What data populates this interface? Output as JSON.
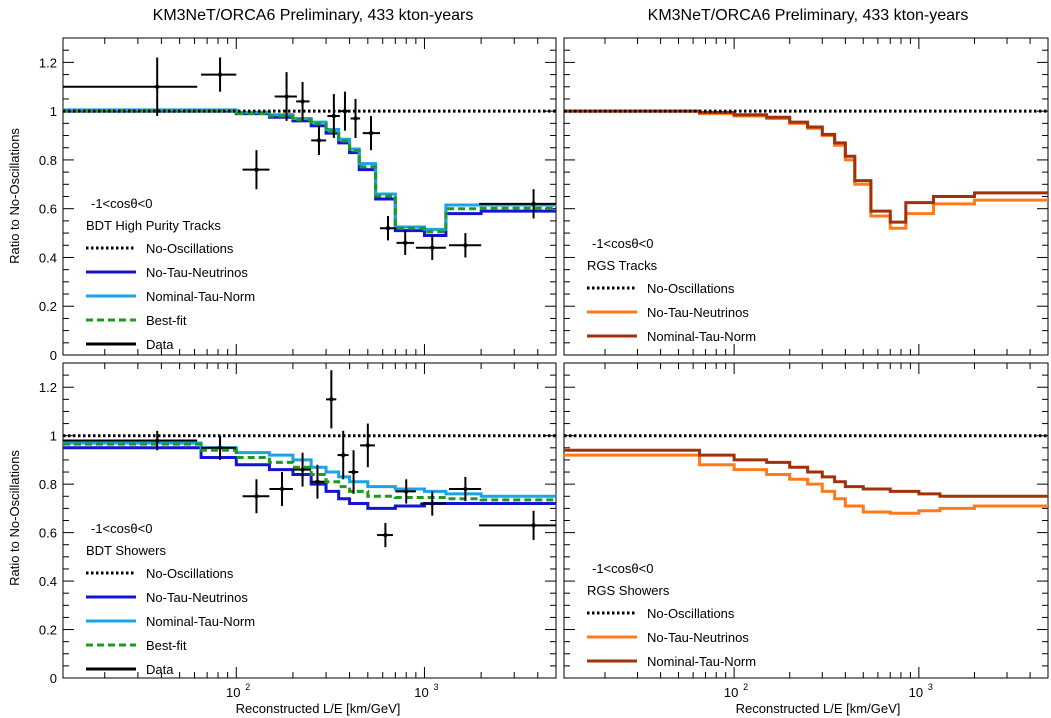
{
  "titles": {
    "left": "KM3NeT/ORCA6 Preliminary, 433 kton-years",
    "right": "KM3NeT/ORCA6 Preliminary, 433 kton-years"
  },
  "axes": {
    "ylabel": "Ratio to No-Oscillations",
    "xlabel": "Reconstructed L/E [km/GeV]",
    "xscale": "log",
    "xlim": [
      12,
      5000
    ],
    "ylim": [
      0,
      1.3
    ],
    "yticks": [
      "0",
      "0.2",
      "0.4",
      "0.6",
      "0.8",
      "1",
      "1.2"
    ],
    "xtick_base": "10",
    "xtick_exps": [
      "2",
      "3"
    ]
  },
  "colors": {
    "no_osc": "#000000",
    "no_tau": "#1414d2",
    "nominal_cyan": "#1aa3e6",
    "bestfit": "#1f9a1f",
    "data": "#000000",
    "rgs_no_tau": "#ff7a1a",
    "rgs_nominal": "#a0320a"
  },
  "chart_data": [
    {
      "type": "line",
      "panel": "top-left",
      "title": "KM3NeT/ORCA6 Preliminary, 433 kton-years",
      "legend": {
        "header": "-1<cosθ<0",
        "subheader": "BDT High Purity Tracks",
        "placement": "left",
        "entries": [
          {
            "name": "No-Oscillations",
            "style": "dotted",
            "color": "#000000"
          },
          {
            "name": "No-Tau-Neutrinos",
            "style": "solid",
            "color": "#1414d2"
          },
          {
            "name": "Nominal-Tau-Norm",
            "style": "solid",
            "color": "#1aa3e6"
          },
          {
            "name": "Best-fit",
            "style": "dashed",
            "color": "#1f9a1f"
          },
          {
            "name": "Data",
            "style": "solid",
            "color": "#000000"
          }
        ]
      },
      "bin_edges": [
        12,
        30,
        65,
        100,
        150,
        200,
        250,
        300,
        350,
        400,
        450,
        550,
        700,
        1000,
        1300,
        2000,
        5000
      ],
      "series": [
        {
          "name": "No-Oscillations",
          "values": [
            1,
            1,
            1,
            1,
            1,
            1,
            1,
            1,
            1,
            1,
            1,
            1,
            1,
            1,
            1,
            1
          ]
        },
        {
          "name": "No-Tau-Neutrinos",
          "values": [
            1.0,
            1.0,
            1.0,
            0.99,
            0.975,
            0.96,
            0.94,
            0.91,
            0.87,
            0.83,
            0.76,
            0.64,
            0.51,
            0.49,
            0.58,
            0.59
          ]
        },
        {
          "name": "Nominal-Tau-Norm",
          "values": [
            1.005,
            1.005,
            1.005,
            0.995,
            0.985,
            0.97,
            0.955,
            0.925,
            0.885,
            0.845,
            0.785,
            0.66,
            0.525,
            0.515,
            0.615,
            0.615
          ]
        },
        {
          "name": "Best-fit",
          "values": [
            1.0,
            1.0,
            1.0,
            0.99,
            0.98,
            0.965,
            0.948,
            0.917,
            0.878,
            0.838,
            0.772,
            0.652,
            0.52,
            0.505,
            0.6,
            0.602
          ]
        }
      ],
      "points": [
        {
          "x": 38,
          "y": 1.1,
          "xlo": 12,
          "xhi": 62,
          "err": 0.12
        },
        {
          "x": 82,
          "y": 1.15,
          "xlo": 65,
          "xhi": 100,
          "err": 0.07
        },
        {
          "x": 128,
          "y": 0.76,
          "xlo": 108,
          "xhi": 150,
          "err": 0.08
        },
        {
          "x": 185,
          "y": 1.06,
          "xlo": 160,
          "xhi": 210,
          "err": 0.1
        },
        {
          "x": 225,
          "y": 1.04,
          "xlo": 208,
          "xhi": 245,
          "err": 0.08
        },
        {
          "x": 275,
          "y": 0.88,
          "xlo": 250,
          "xhi": 300,
          "err": 0.06
        },
        {
          "x": 330,
          "y": 0.98,
          "xlo": 305,
          "xhi": 355,
          "err": 0.09
        },
        {
          "x": 378,
          "y": 1.0,
          "xlo": 355,
          "xhi": 400,
          "err": 0.08
        },
        {
          "x": 430,
          "y": 0.97,
          "xlo": 405,
          "xhi": 455,
          "err": 0.08
        },
        {
          "x": 520,
          "y": 0.91,
          "xlo": 470,
          "xhi": 580,
          "err": 0.07
        },
        {
          "x": 640,
          "y": 0.52,
          "xlo": 580,
          "xhi": 710,
          "err": 0.05
        },
        {
          "x": 790,
          "y": 0.46,
          "xlo": 710,
          "xhi": 880,
          "err": 0.05
        },
        {
          "x": 1100,
          "y": 0.44,
          "xlo": 900,
          "xhi": 1300,
          "err": 0.05
        },
        {
          "x": 1650,
          "y": 0.45,
          "xlo": 1350,
          "xhi": 2000,
          "err": 0.05
        },
        {
          "x": 3800,
          "y": 0.62,
          "xlo": 1950,
          "xhi": 5000,
          "err": 0.06
        }
      ]
    },
    {
      "type": "line",
      "panel": "top-right",
      "title": "KM3NeT/ORCA6 Preliminary, 433 kton-years",
      "legend": {
        "header": "-1<cosθ<0",
        "subheader": "RGS Tracks",
        "placement": "left",
        "entries": [
          {
            "name": "No-Oscillations",
            "style": "dotted",
            "color": "#000000"
          },
          {
            "name": "No-Tau-Neutrinos",
            "style": "solid",
            "color": "#ff7a1a"
          },
          {
            "name": "Nominal-Tau-Norm",
            "style": "solid",
            "color": "#a0320a"
          }
        ]
      },
      "bin_edges": [
        12,
        30,
        65,
        100,
        150,
        200,
        250,
        300,
        350,
        400,
        450,
        550,
        700,
        850,
        1200,
        2000,
        5000
      ],
      "series": [
        {
          "name": "No-Oscillations",
          "values": [
            1,
            1,
            1,
            1,
            1,
            1,
            1,
            1,
            1,
            1,
            1,
            1,
            1,
            1,
            1,
            1
          ]
        },
        {
          "name": "No-Tau-Neutrinos",
          "values": [
            1.0,
            1.0,
            0.99,
            0.98,
            0.97,
            0.95,
            0.93,
            0.9,
            0.86,
            0.8,
            0.7,
            0.57,
            0.52,
            0.58,
            0.62,
            0.635
          ]
        },
        {
          "name": "Nominal-Tau-Norm",
          "values": [
            1.0,
            1.0,
            0.995,
            0.985,
            0.975,
            0.955,
            0.935,
            0.905,
            0.87,
            0.815,
            0.715,
            0.59,
            0.545,
            0.625,
            0.65,
            0.665
          ]
        }
      ]
    },
    {
      "type": "line",
      "panel": "bottom-left",
      "legend": {
        "header": "-1<cosθ<0",
        "subheader": "BDT Showers",
        "placement": "left",
        "entries": [
          {
            "name": "No-Oscillations",
            "style": "dotted",
            "color": "#000000"
          },
          {
            "name": "No-Tau-Neutrinos",
            "style": "solid",
            "color": "#1414d2"
          },
          {
            "name": "Nominal-Tau-Norm",
            "style": "solid",
            "color": "#1aa3e6"
          },
          {
            "name": "Best-fit",
            "style": "dashed",
            "color": "#1f9a1f"
          },
          {
            "name": "Data",
            "style": "solid",
            "color": "#000000"
          }
        ]
      },
      "bin_edges": [
        12,
        65,
        100,
        150,
        200,
        250,
        300,
        350,
        400,
        500,
        700,
        1000,
        1300,
        2000,
        5000
      ],
      "series": [
        {
          "name": "No-Oscillations",
          "values": [
            1,
            1,
            1,
            1,
            1,
            1,
            1,
            1,
            1,
            1,
            1,
            1,
            1,
            1
          ]
        },
        {
          "name": "No-Tau-Neutrinos",
          "values": [
            0.95,
            0.91,
            0.88,
            0.86,
            0.84,
            0.8,
            0.77,
            0.74,
            0.72,
            0.7,
            0.71,
            0.72,
            0.72,
            0.72
          ]
        },
        {
          "name": "Nominal-Tau-Norm",
          "values": [
            0.97,
            0.95,
            0.93,
            0.92,
            0.9,
            0.87,
            0.85,
            0.83,
            0.81,
            0.79,
            0.78,
            0.77,
            0.76,
            0.75
          ]
        },
        {
          "name": "Best-fit",
          "values": [
            0.965,
            0.94,
            0.91,
            0.89,
            0.87,
            0.84,
            0.81,
            0.79,
            0.77,
            0.75,
            0.745,
            0.745,
            0.74,
            0.735
          ]
        }
      ],
      "points": [
        {
          "x": 38,
          "y": 0.98,
          "xlo": 12,
          "xhi": 62,
          "err": 0.04
        },
        {
          "x": 82,
          "y": 0.95,
          "xlo": 65,
          "xhi": 100,
          "err": 0.05
        },
        {
          "x": 128,
          "y": 0.75,
          "xlo": 108,
          "xhi": 150,
          "err": 0.07
        },
        {
          "x": 175,
          "y": 0.78,
          "xlo": 150,
          "xhi": 200,
          "err": 0.07
        },
        {
          "x": 225,
          "y": 0.86,
          "xlo": 200,
          "xhi": 250,
          "err": 0.07
        },
        {
          "x": 270,
          "y": 0.81,
          "xlo": 250,
          "xhi": 295,
          "err": 0.07
        },
        {
          "x": 320,
          "y": 1.15,
          "xlo": 300,
          "xhi": 340,
          "err": 0.12
        },
        {
          "x": 370,
          "y": 0.92,
          "xlo": 345,
          "xhi": 395,
          "err": 0.1
        },
        {
          "x": 420,
          "y": 0.85,
          "xlo": 395,
          "xhi": 445,
          "err": 0.09
        },
        {
          "x": 500,
          "y": 0.96,
          "xlo": 455,
          "xhi": 545,
          "err": 0.09
        },
        {
          "x": 620,
          "y": 0.59,
          "xlo": 560,
          "xhi": 680,
          "err": 0.05
        },
        {
          "x": 800,
          "y": 0.77,
          "xlo": 700,
          "xhi": 900,
          "err": 0.05
        },
        {
          "x": 1100,
          "y": 0.72,
          "xlo": 950,
          "xhi": 1300,
          "err": 0.05
        },
        {
          "x": 1650,
          "y": 0.78,
          "xlo": 1350,
          "xhi": 2000,
          "err": 0.05
        },
        {
          "x": 3800,
          "y": 0.63,
          "xlo": 1950,
          "xhi": 5000,
          "err": 0.06
        }
      ]
    },
    {
      "type": "line",
      "panel": "bottom-right",
      "legend": {
        "header": "-1<cosθ<0",
        "subheader": "RGS Showers",
        "placement": "left",
        "entries": [
          {
            "name": "No-Oscillations",
            "style": "dotted",
            "color": "#000000"
          },
          {
            "name": "No-Tau-Neutrinos",
            "style": "solid",
            "color": "#ff7a1a"
          },
          {
            "name": "Nominal-Tau-Norm",
            "style": "solid",
            "color": "#a0320a"
          }
        ]
      },
      "bin_edges": [
        12,
        65,
        100,
        150,
        200,
        250,
        300,
        350,
        400,
        500,
        700,
        1000,
        1300,
        2000,
        5000
      ],
      "series": [
        {
          "name": "No-Oscillations",
          "values": [
            1,
            1,
            1,
            1,
            1,
            1,
            1,
            1,
            1,
            1,
            1,
            1,
            1,
            1
          ]
        },
        {
          "name": "No-Tau-Neutrinos",
          "values": [
            0.92,
            0.88,
            0.86,
            0.84,
            0.82,
            0.8,
            0.77,
            0.74,
            0.71,
            0.685,
            0.68,
            0.69,
            0.7,
            0.71
          ]
        },
        {
          "name": "Nominal-Tau-Norm",
          "values": [
            0.94,
            0.92,
            0.9,
            0.89,
            0.87,
            0.85,
            0.83,
            0.81,
            0.79,
            0.78,
            0.77,
            0.76,
            0.75,
            0.75
          ]
        }
      ]
    }
  ]
}
